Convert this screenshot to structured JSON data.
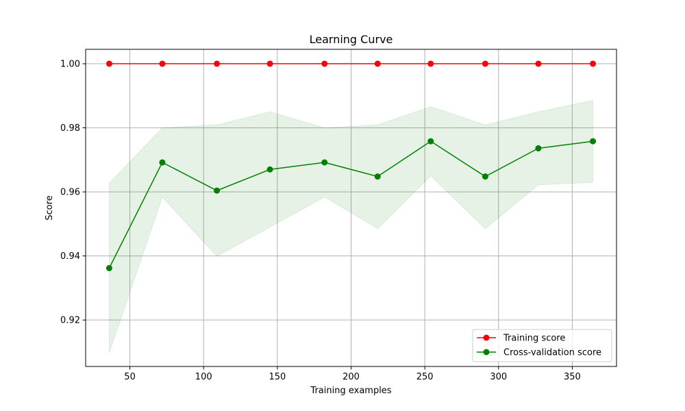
{
  "chart_data": {
    "type": "line",
    "title": "Learning Curve",
    "xlabel": "Training examples",
    "ylabel": "Score",
    "xlim": [
      20,
      380
    ],
    "ylim": [
      0.9055,
      1.0045
    ],
    "xticks": [
      50,
      100,
      150,
      200,
      250,
      300,
      350
    ],
    "yticks": [
      0.92,
      0.94,
      0.96,
      0.98,
      1.0
    ],
    "ytick_labels": [
      "0.92",
      "0.94",
      "0.96",
      "0.98",
      "1.00"
    ],
    "grid": true,
    "legend_position": "lower-right",
    "x": [
      36,
      72,
      109,
      145,
      182,
      218,
      254,
      291,
      327,
      364
    ],
    "series": [
      {
        "name": "Training score",
        "color": "#ff0000",
        "band_color": "#ff0000",
        "values": [
          1.0,
          1.0,
          1.0,
          1.0,
          1.0,
          1.0,
          1.0,
          1.0,
          1.0,
          1.0
        ],
        "lower": [
          1.0,
          1.0,
          1.0,
          1.0,
          1.0,
          1.0,
          1.0,
          1.0,
          1.0,
          1.0
        ],
        "upper": [
          1.0,
          1.0,
          1.0,
          1.0,
          1.0,
          1.0,
          1.0,
          1.0,
          1.0,
          1.0
        ]
      },
      {
        "name": "Cross-validation score",
        "color": "#008000",
        "band_color": "#008000",
        "values": [
          0.9362,
          0.9692,
          0.9604,
          0.967,
          0.9692,
          0.9648,
          0.9758,
          0.9648,
          0.9736,
          0.9758
        ],
        "lower": [
          0.9097,
          0.9584,
          0.9399,
          0.949,
          0.9584,
          0.9485,
          0.965,
          0.9485,
          0.9622,
          0.963
        ],
        "upper": [
          0.9627,
          0.98,
          0.9809,
          0.985,
          0.98,
          0.9809,
          0.9866,
          0.9809,
          0.985,
          0.9886
        ]
      }
    ]
  }
}
